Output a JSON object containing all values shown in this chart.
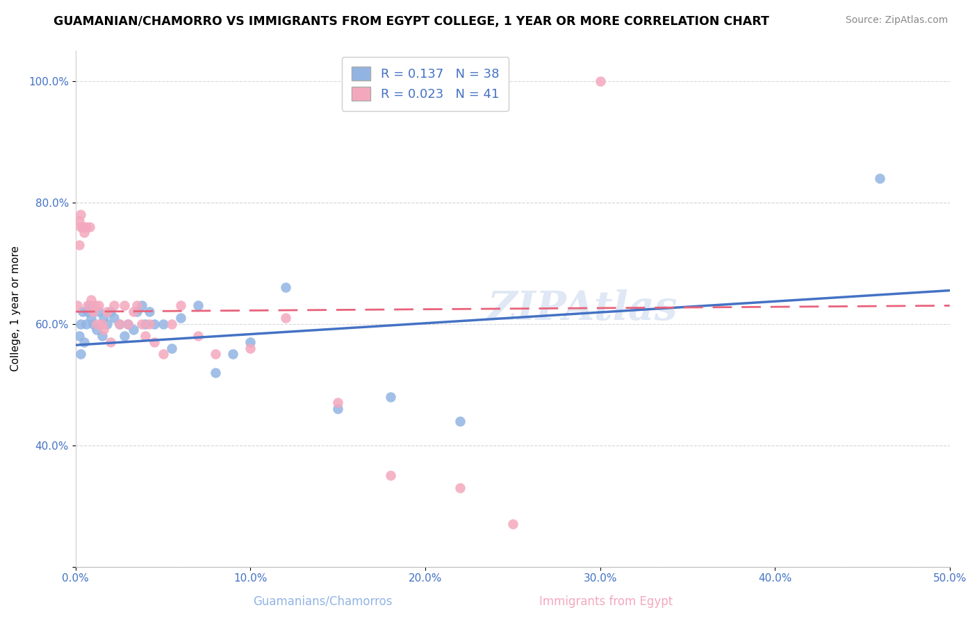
{
  "title": "GUAMANIAN/CHAMORRO VS IMMIGRANTS FROM EGYPT COLLEGE, 1 YEAR OR MORE CORRELATION CHART",
  "source": "Source: ZipAtlas.com",
  "xlabel_bottom": [
    "Guamanians/Chamorros",
    "Immigrants from Egypt"
  ],
  "ylabel": "College, 1 year or more",
  "xlim": [
    0.0,
    0.5
  ],
  "ylim": [
    0.2,
    1.05
  ],
  "xticks": [
    0.0,
    0.1,
    0.2,
    0.3,
    0.4,
    0.5
  ],
  "xtick_labels": [
    "0.0%",
    "10.0%",
    "20.0%",
    "30.0%",
    "40.0%",
    "50.0%"
  ],
  "yticks": [
    0.2,
    0.4,
    0.6,
    0.8,
    1.0
  ],
  "ytick_labels": [
    "",
    "40.0%",
    "60.0%",
    "80.0%",
    "100.0%"
  ],
  "blue_R": 0.137,
  "blue_N": 38,
  "pink_R": 0.023,
  "pink_N": 41,
  "blue_color": "#92b4e3",
  "pink_color": "#f4a8be",
  "blue_line_color": "#4472c4",
  "pink_line_color": "#e8627a",
  "watermark": "ZIPAtlas",
  "blue_x": [
    0.002,
    0.003,
    0.004,
    0.005,
    0.006,
    0.007,
    0.008,
    0.009,
    0.01,
    0.012,
    0.013,
    0.015,
    0.016,
    0.018,
    0.02,
    0.022,
    0.025,
    0.028,
    0.03,
    0.033,
    0.035,
    0.038,
    0.04,
    0.042,
    0.045,
    0.05,
    0.055,
    0.06,
    0.07,
    0.08,
    0.09,
    0.1,
    0.12,
    0.15,
    0.18,
    0.22,
    0.46,
    0.003
  ],
  "blue_y": [
    0.58,
    0.6,
    0.62,
    0.57,
    0.6,
    0.62,
    0.63,
    0.61,
    0.6,
    0.59,
    0.62,
    0.58,
    0.61,
    0.6,
    0.62,
    0.61,
    0.6,
    0.58,
    0.6,
    0.59,
    0.62,
    0.63,
    0.6,
    0.62,
    0.6,
    0.6,
    0.56,
    0.61,
    0.63,
    0.52,
    0.55,
    0.57,
    0.66,
    0.46,
    0.48,
    0.44,
    0.84,
    0.55
  ],
  "pink_x": [
    0.001,
    0.002,
    0.003,
    0.004,
    0.005,
    0.006,
    0.007,
    0.008,
    0.009,
    0.01,
    0.011,
    0.012,
    0.013,
    0.015,
    0.016,
    0.018,
    0.02,
    0.022,
    0.025,
    0.028,
    0.03,
    0.033,
    0.035,
    0.038,
    0.04,
    0.042,
    0.045,
    0.05,
    0.055,
    0.06,
    0.07,
    0.08,
    0.1,
    0.12,
    0.15,
    0.18,
    0.22,
    0.25,
    0.3,
    0.002,
    0.003
  ],
  "pink_y": [
    0.63,
    0.77,
    0.78,
    0.76,
    0.75,
    0.76,
    0.63,
    0.76,
    0.64,
    0.62,
    0.63,
    0.6,
    0.63,
    0.6,
    0.59,
    0.62,
    0.57,
    0.63,
    0.6,
    0.63,
    0.6,
    0.62,
    0.63,
    0.6,
    0.58,
    0.6,
    0.57,
    0.55,
    0.6,
    0.63,
    0.58,
    0.55,
    0.56,
    0.61,
    0.47,
    0.35,
    0.33,
    0.27,
    1.0,
    0.73,
    0.76
  ],
  "blue_line_x0": 0.0,
  "blue_line_x1": 0.5,
  "blue_line_y0": 0.565,
  "blue_line_y1": 0.655,
  "pink_line_x0": 0.0,
  "pink_line_x1": 0.5,
  "pink_line_y0": 0.62,
  "pink_line_y1": 0.63
}
